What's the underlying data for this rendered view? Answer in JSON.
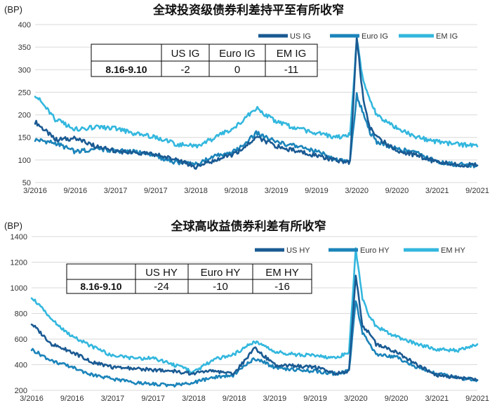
{
  "colors": {
    "us": "#1a5a93",
    "euro": "#1b84ba",
    "em": "#33b7de"
  },
  "chart_data": [
    {
      "type": "line",
      "title": "全球投资级债券利差持平至有所收窄",
      "ylabel": "(BP)",
      "ylim": [
        50,
        400
      ],
      "yticks": [
        "50",
        "100",
        "150",
        "200",
        "250",
        "300",
        "350",
        "400"
      ],
      "xticks": [
        "3/2016",
        "9/2016",
        "3/2017",
        "9/2017",
        "3/2018",
        "9/2018",
        "3/2019",
        "9/2019",
        "3/2020",
        "9/2020",
        "3/2021",
        "9/2021"
      ],
      "grid": true,
      "legend": "top-right",
      "x": [
        "3/2016",
        "6/2016",
        "9/2016",
        "12/2016",
        "3/2017",
        "6/2017",
        "9/2017",
        "12/2017",
        "3/2018",
        "6/2018",
        "9/2018",
        "12/2018",
        "3/2019",
        "6/2019",
        "9/2019",
        "12/2019",
        "2/2020",
        "3/2020",
        "4/2020",
        "5/2020",
        "6/2020",
        "9/2020",
        "12/2020",
        "3/2021",
        "6/2021",
        "9/2021"
      ],
      "series": [
        {
          "name": "US IG",
          "values": [
            185,
            145,
            148,
            130,
            120,
            115,
            112,
            100,
            85,
            100,
            115,
            150,
            130,
            120,
            110,
            98,
            95,
            370,
            230,
            170,
            150,
            120,
            110,
            95,
            90,
            88
          ]
        },
        {
          "name": "Euro IG",
          "values": [
            145,
            138,
            118,
            125,
            120,
            118,
            108,
            95,
            90,
            110,
            120,
            160,
            140,
            130,
            120,
            100,
            95,
            245,
            200,
            160,
            140,
            125,
            115,
            95,
            90,
            88
          ]
        },
        {
          "name": "EM IG",
          "values": [
            245,
            190,
            168,
            172,
            170,
            158,
            150,
            135,
            130,
            150,
            175,
            215,
            185,
            170,
            160,
            150,
            155,
            370,
            270,
            230,
            200,
            170,
            150,
            140,
            135,
            130
          ]
        }
      ],
      "table": {
        "headers": [
          "",
          "US IG",
          "Euro IG",
          "EM IG"
        ],
        "row_label": "8.16-9.10",
        "values": [
          "-2",
          "0",
          "-11"
        ]
      }
    },
    {
      "type": "line",
      "title": "全球高收益债券利差有所收窄",
      "ylabel": "(BP)",
      "ylim": [
        200,
        1400
      ],
      "yticks": [
        "200",
        "400",
        "600",
        "800",
        "1000",
        "1200",
        "1400"
      ],
      "xticks": [
        "3/2016",
        "9/2016",
        "3/2017",
        "9/2017",
        "3/2018",
        "9/2018",
        "3/2019",
        "9/2019",
        "3/2020",
        "9/2020",
        "3/2021",
        "9/2021"
      ],
      "grid": true,
      "legend": "top-right",
      "x": [
        "3/2016",
        "6/2016",
        "9/2016",
        "12/2016",
        "3/2017",
        "6/2017",
        "9/2017",
        "12/2017",
        "3/2018",
        "6/2018",
        "9/2018",
        "12/2018",
        "3/2019",
        "6/2019",
        "9/2019",
        "12/2019",
        "2/2020",
        "3/2020",
        "4/2020",
        "5/2020",
        "6/2020",
        "9/2020",
        "12/2020",
        "3/2021",
        "6/2021",
        "9/2021"
      ],
      "series": [
        {
          "name": "US HY",
          "values": [
            720,
            560,
            500,
            420,
            380,
            370,
            360,
            350,
            330,
            350,
            330,
            530,
            400,
            390,
            380,
            330,
            350,
            1100,
            700,
            650,
            560,
            500,
            400,
            320,
            300,
            280
          ]
        },
        {
          "name": "Euro HY",
          "values": [
            520,
            430,
            380,
            320,
            290,
            260,
            250,
            240,
            260,
            300,
            320,
            450,
            380,
            360,
            350,
            330,
            350,
            900,
            650,
            560,
            480,
            460,
            380,
            330,
            300,
            280
          ]
        },
        {
          "name": "EM HY",
          "values": [
            930,
            750,
            620,
            540,
            470,
            450,
            450,
            400,
            340,
            440,
            480,
            580,
            500,
            480,
            470,
            450,
            500,
            1300,
            920,
            780,
            700,
            620,
            560,
            520,
            510,
            560
          ]
        }
      ],
      "table": {
        "headers": [
          "",
          "US HY",
          "Euro HY",
          "EM HY"
        ],
        "row_label": "8.16-9.10",
        "values": [
          "-24",
          "-10",
          "-16"
        ]
      }
    }
  ]
}
